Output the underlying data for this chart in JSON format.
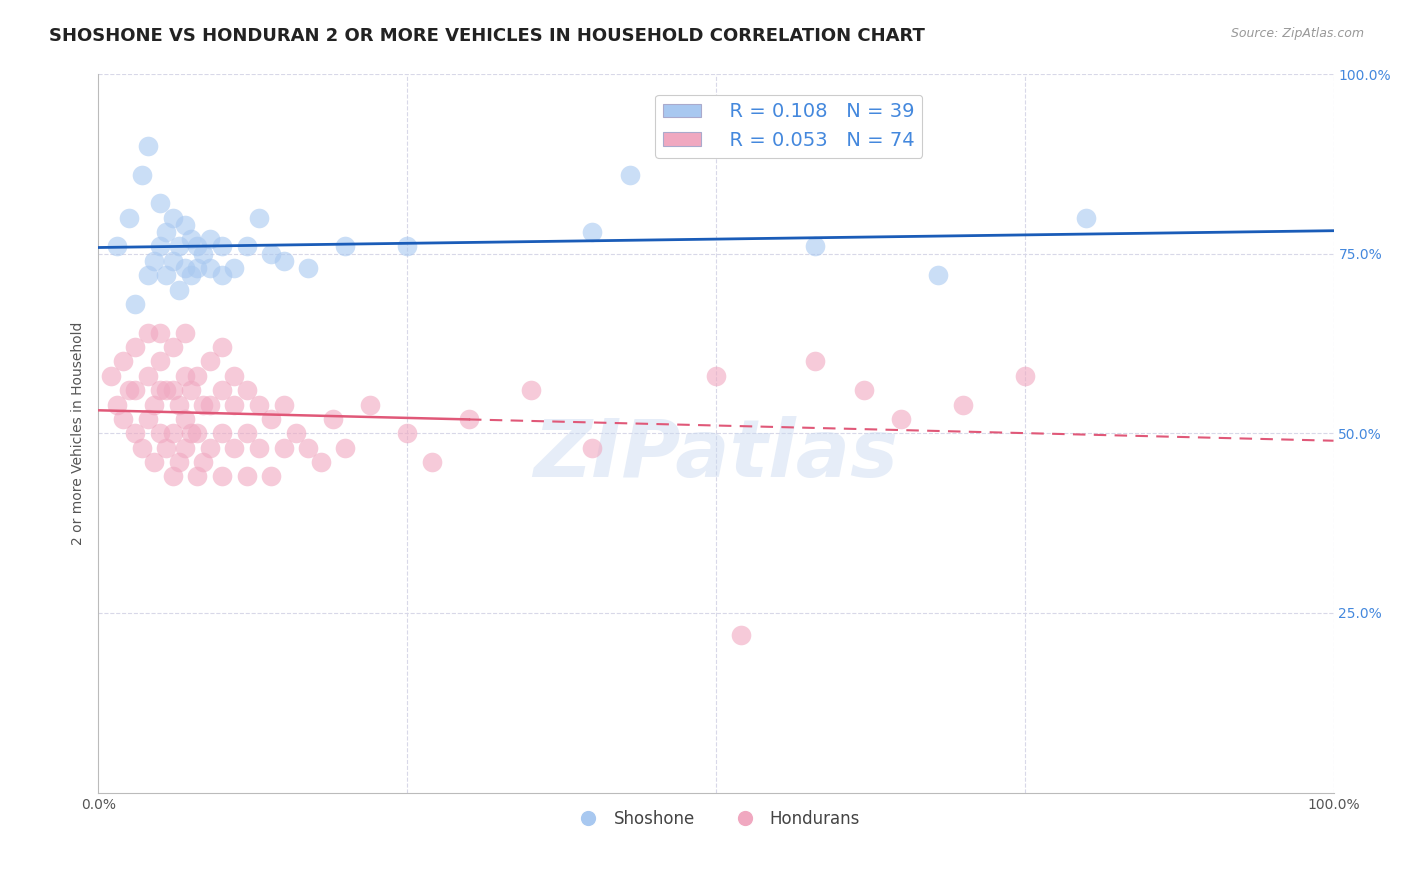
{
  "title": "SHOSHONE VS HONDURAN 2 OR MORE VEHICLES IN HOUSEHOLD CORRELATION CHART",
  "source": "Source: ZipAtlas.com",
  "ylabel": "2 or more Vehicles in Household",
  "xlabel": "",
  "xlim": [
    0.0,
    1.0
  ],
  "ylim": [
    0.0,
    1.0
  ],
  "xtick_positions": [
    0.0,
    1.0
  ],
  "xtick_labels": [
    "0.0%",
    "100.0%"
  ],
  "ytick_labels": [
    "25.0%",
    "50.0%",
    "75.0%",
    "100.0%"
  ],
  "ytick_positions": [
    0.25,
    0.5,
    0.75,
    1.0
  ],
  "shoshone_R": "0.108",
  "shoshone_N": "39",
  "honduran_R": "0.053",
  "honduran_N": "74",
  "shoshone_color": "#a8c8f0",
  "honduran_color": "#f0a8c0",
  "shoshone_line_color": "#1a5cb8",
  "honduran_line_color": "#e05878",
  "legend_label_shoshone": "Shoshone",
  "legend_label_honduran": "Hondurans",
  "shoshone_x": [
    0.015,
    0.025,
    0.03,
    0.035,
    0.04,
    0.04,
    0.045,
    0.05,
    0.05,
    0.055,
    0.055,
    0.06,
    0.06,
    0.065,
    0.065,
    0.07,
    0.07,
    0.075,
    0.075,
    0.08,
    0.08,
    0.085,
    0.09,
    0.09,
    0.1,
    0.1,
    0.11,
    0.12,
    0.13,
    0.14,
    0.15,
    0.17,
    0.2,
    0.25,
    0.4,
    0.43,
    0.58,
    0.68,
    0.8
  ],
  "shoshone_y": [
    0.76,
    0.8,
    0.68,
    0.86,
    0.72,
    0.9,
    0.74,
    0.76,
    0.82,
    0.72,
    0.78,
    0.74,
    0.8,
    0.7,
    0.76,
    0.73,
    0.79,
    0.72,
    0.77,
    0.73,
    0.76,
    0.75,
    0.73,
    0.77,
    0.72,
    0.76,
    0.73,
    0.76,
    0.8,
    0.75,
    0.74,
    0.73,
    0.76,
    0.76,
    0.78,
    0.86,
    0.76,
    0.72,
    0.8
  ],
  "honduran_x": [
    0.01,
    0.015,
    0.02,
    0.02,
    0.025,
    0.03,
    0.03,
    0.03,
    0.035,
    0.04,
    0.04,
    0.04,
    0.045,
    0.045,
    0.05,
    0.05,
    0.05,
    0.05,
    0.055,
    0.055,
    0.06,
    0.06,
    0.06,
    0.06,
    0.065,
    0.065,
    0.07,
    0.07,
    0.07,
    0.07,
    0.075,
    0.075,
    0.08,
    0.08,
    0.08,
    0.085,
    0.085,
    0.09,
    0.09,
    0.09,
    0.1,
    0.1,
    0.1,
    0.1,
    0.11,
    0.11,
    0.11,
    0.12,
    0.12,
    0.12,
    0.13,
    0.13,
    0.14,
    0.14,
    0.15,
    0.15,
    0.16,
    0.17,
    0.18,
    0.19,
    0.2,
    0.22,
    0.25,
    0.27,
    0.3,
    0.35,
    0.4,
    0.5,
    0.52,
    0.58,
    0.62,
    0.65,
    0.7,
    0.75
  ],
  "honduran_y": [
    0.58,
    0.54,
    0.52,
    0.6,
    0.56,
    0.5,
    0.56,
    0.62,
    0.48,
    0.52,
    0.58,
    0.64,
    0.46,
    0.54,
    0.5,
    0.56,
    0.6,
    0.64,
    0.48,
    0.56,
    0.44,
    0.5,
    0.56,
    0.62,
    0.46,
    0.54,
    0.48,
    0.52,
    0.58,
    0.64,
    0.5,
    0.56,
    0.44,
    0.5,
    0.58,
    0.46,
    0.54,
    0.48,
    0.54,
    0.6,
    0.44,
    0.5,
    0.56,
    0.62,
    0.48,
    0.54,
    0.58,
    0.44,
    0.5,
    0.56,
    0.48,
    0.54,
    0.44,
    0.52,
    0.48,
    0.54,
    0.5,
    0.48,
    0.46,
    0.52,
    0.48,
    0.54,
    0.5,
    0.46,
    0.52,
    0.56,
    0.48,
    0.58,
    0.22,
    0.6,
    0.56,
    0.52,
    0.54,
    0.58
  ],
  "watermark": "ZIPatlas",
  "background_color": "#ffffff",
  "grid_color": "#d8d8e8",
  "title_fontsize": 13,
  "axis_label_fontsize": 10,
  "tick_fontsize": 10,
  "legend_fontsize": 14,
  "right_tick_color": "#4488dd"
}
